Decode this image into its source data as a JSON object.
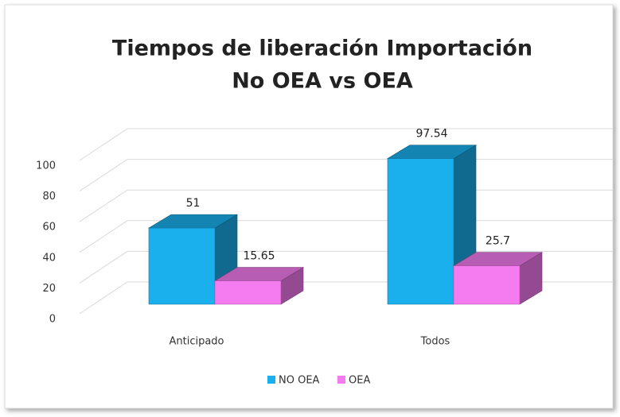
{
  "chart_data": {
    "type": "bar3d",
    "title": [
      "Tiempos de liberación Importación",
      "No OEA vs OEA"
    ],
    "categories": [
      "Anticipado",
      "Todos"
    ],
    "series": [
      {
        "name": "NO OEA",
        "color": "#1ab0ee",
        "values": [
          51,
          97.54
        ]
      },
      {
        "name": "OEA",
        "color": "#f57cf0",
        "values": [
          15.65,
          25.7
        ]
      }
    ],
    "ylim": [
      0,
      100
    ],
    "yticks": [
      0,
      20,
      40,
      60,
      80,
      100
    ],
    "grid": true,
    "legend": "bottom"
  }
}
